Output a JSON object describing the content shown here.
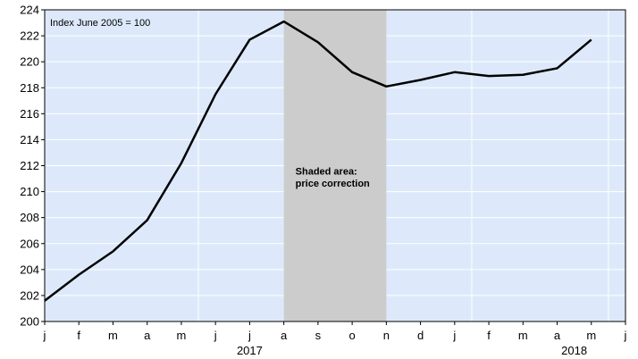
{
  "chart_data": {
    "type": "line",
    "index_note": "Index June 2005 = 100",
    "x_ticks": [
      "j",
      "f",
      "m",
      "a",
      "m",
      "j",
      "j",
      "a",
      "s",
      "o",
      "n",
      "d",
      "j",
      "f",
      "m",
      "a",
      "m",
      "j"
    ],
    "year_labels": [
      {
        "label": "2017",
        "tick_index": 6
      },
      {
        "label": "2018",
        "tick_index": 15.5
      }
    ],
    "ylim": [
      200,
      224
    ],
    "y_ticks": [
      200,
      202,
      204,
      206,
      208,
      210,
      212,
      214,
      216,
      218,
      220,
      222,
      224
    ],
    "series": [
      {
        "values": [
          201.6,
          203.6,
          205.4,
          207.8,
          212.2,
          217.5,
          221.7,
          223.1,
          221.5,
          219.2,
          218.1,
          218.6,
          219.2,
          218.9,
          219.0,
          219.5,
          221.7
        ]
      }
    ],
    "shaded_region": {
      "from_index": 7,
      "to_index": 10
    },
    "annotation": [
      "Shaded area:",
      "price correction"
    ],
    "colors": {
      "plot_background": "#dde9fb",
      "shade": "#cccccc",
      "line": "#000000",
      "grid": "#ffffff"
    }
  }
}
